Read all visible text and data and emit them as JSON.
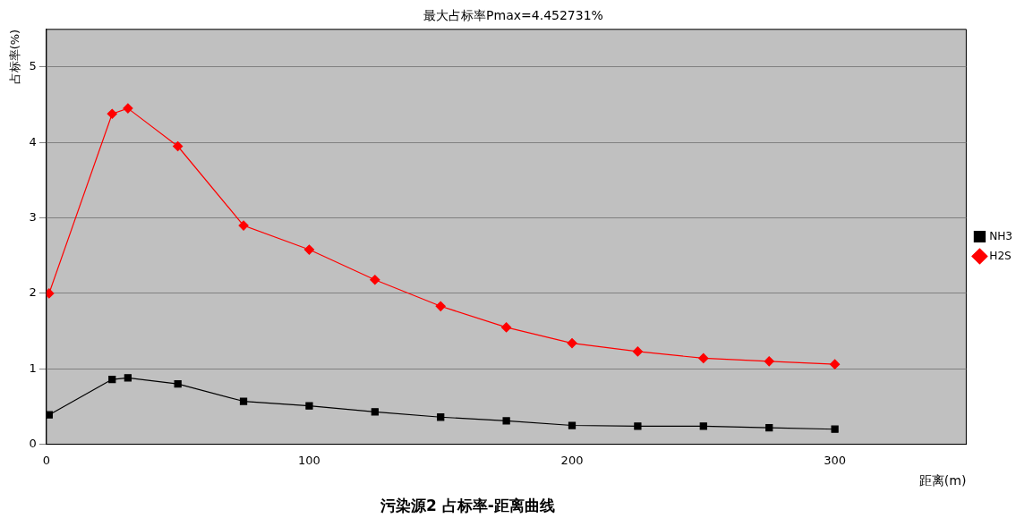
{
  "chart_data": {
    "type": "line",
    "title": "最大占标率Pmax=4.452731%",
    "xlabel": "距离(m)",
    "ylabel": "占标率(%)",
    "annotations": [
      "污染源2 占标率-距离曲线"
    ],
    "x": [
      1,
      25,
      31,
      50,
      75,
      100,
      125,
      150,
      175,
      200,
      225,
      250,
      275,
      300
    ],
    "series": [
      {
        "name": "NH3",
        "color": "#000000",
        "marker": "square",
        "values": [
          0.39,
          0.86,
          0.88,
          0.8,
          0.57,
          0.51,
          0.43,
          0.36,
          0.31,
          0.25,
          0.24,
          0.24,
          0.22,
          0.2
        ]
      },
      {
        "name": "H2S",
        "color": "#ff0000",
        "marker": "diamond",
        "values": [
          2.0,
          4.38,
          4.452731,
          3.95,
          2.9,
          2.58,
          2.18,
          1.83,
          1.55,
          1.34,
          1.23,
          1.14,
          1.1,
          1.06
        ]
      }
    ],
    "xlim": [
      0,
      350
    ],
    "xticks": [
      0,
      100,
      200,
      300
    ],
    "ylim": [
      0,
      5.5
    ],
    "yticks": [
      0,
      1,
      2,
      3,
      4,
      5
    ],
    "grid": "y",
    "legend": "right",
    "line_style": "solid"
  }
}
